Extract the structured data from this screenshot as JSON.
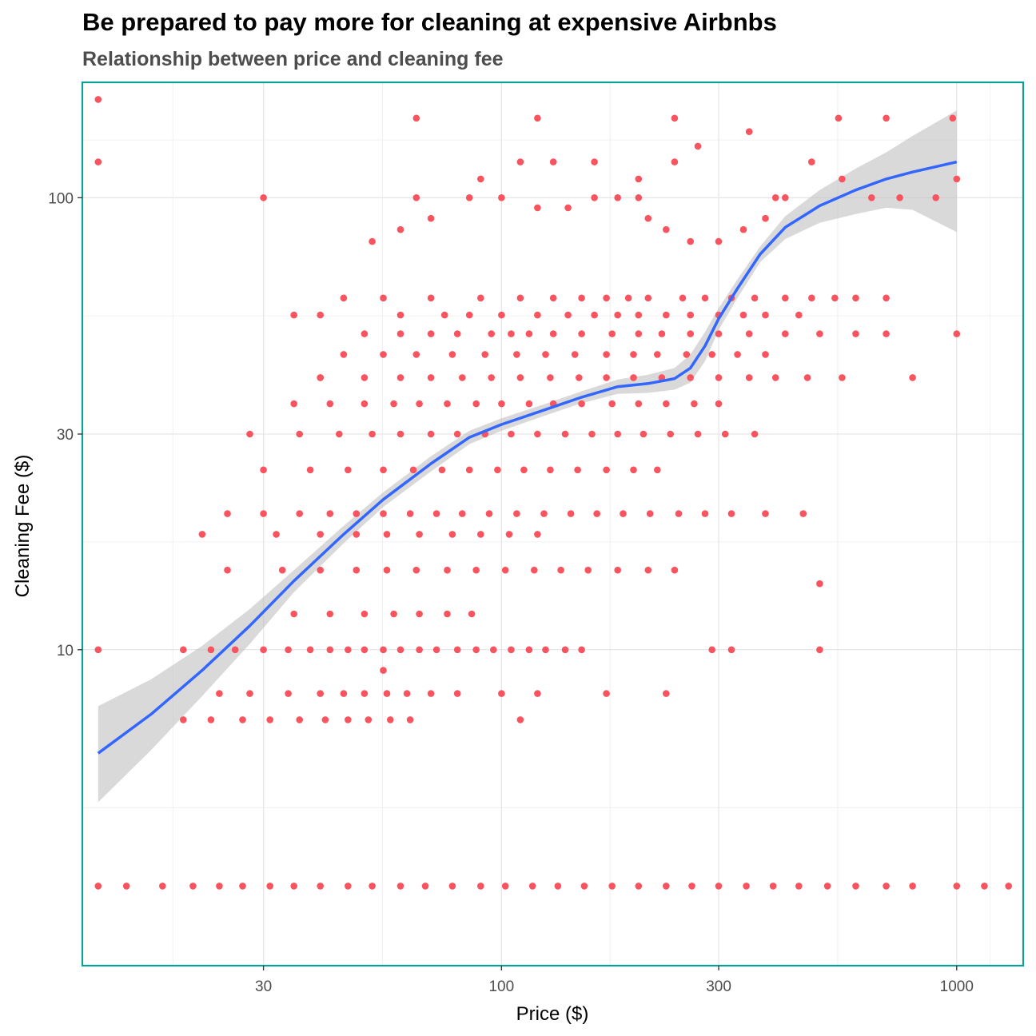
{
  "chart_data": {
    "type": "scatter",
    "title": "Be prepared to pay more for cleaning at expensive Airbnbs",
    "subtitle": "Relationship between price and cleaning fee",
    "xlabel": "Price ($)",
    "ylabel": "Cleaning Fee ($)",
    "x_scale": "log10",
    "y_scale": "log10",
    "xlim": [
      12,
      1400
    ],
    "ylim": [
      2,
      180
    ],
    "x_ticks": [
      30,
      100,
      300,
      1000
    ],
    "y_ticks": [
      10,
      30,
      100
    ],
    "grid": true,
    "panel_border_color": "#0e9f94",
    "point_color": "#f8545f",
    "smooth_color": "#3366ff",
    "ribbon_color": "#bfbfbf",
    "points": [
      [
        13,
        165
      ],
      [
        13,
        120
      ],
      [
        22,
        18
      ],
      [
        40,
        40
      ],
      [
        65,
        150
      ],
      [
        120,
        150
      ],
      [
        240,
        150
      ],
      [
        550,
        150
      ],
      [
        700,
        150
      ],
      [
        980,
        150
      ],
      [
        400,
        100
      ],
      [
        350,
        140
      ],
      [
        270,
        130
      ],
      [
        240,
        120
      ],
      [
        200,
        110
      ],
      [
        160,
        120
      ],
      [
        130,
        120
      ],
      [
        110,
        120
      ],
      [
        90,
        110
      ],
      [
        65,
        100
      ],
      [
        30,
        100
      ],
      [
        45,
        60
      ],
      [
        55,
        60
      ],
      [
        70,
        60
      ],
      [
        90,
        60
      ],
      [
        110,
        60
      ],
      [
        130,
        60
      ],
      [
        150,
        60
      ],
      [
        170,
        60
      ],
      [
        190,
        60
      ],
      [
        210,
        60
      ],
      [
        250,
        60
      ],
      [
        280,
        60
      ],
      [
        320,
        60
      ],
      [
        360,
        60
      ],
      [
        420,
        60
      ],
      [
        480,
        60
      ],
      [
        540,
        60
      ],
      [
        600,
        60
      ],
      [
        700,
        60
      ],
      [
        60,
        55
      ],
      [
        75,
        55
      ],
      [
        85,
        55
      ],
      [
        100,
        55
      ],
      [
        120,
        55
      ],
      [
        140,
        55
      ],
      [
        160,
        55
      ],
      [
        180,
        55
      ],
      [
        200,
        55
      ],
      [
        230,
        55
      ],
      [
        260,
        55
      ],
      [
        300,
        55
      ],
      [
        340,
        55
      ],
      [
        380,
        55
      ],
      [
        450,
        55
      ],
      [
        35,
        55
      ],
      [
        40,
        55
      ],
      [
        50,
        50
      ],
      [
        60,
        50
      ],
      [
        70,
        50
      ],
      [
        80,
        50
      ],
      [
        95,
        50
      ],
      [
        105,
        50
      ],
      [
        115,
        50
      ],
      [
        130,
        50
      ],
      [
        150,
        50
      ],
      [
        175,
        50
      ],
      [
        200,
        50
      ],
      [
        225,
        50
      ],
      [
        260,
        50
      ],
      [
        300,
        50
      ],
      [
        350,
        50
      ],
      [
        420,
        50
      ],
      [
        500,
        50
      ],
      [
        600,
        50
      ],
      [
        700,
        50
      ],
      [
        45,
        45
      ],
      [
        55,
        45
      ],
      [
        65,
        45
      ],
      [
        78,
        45
      ],
      [
        92,
        45
      ],
      [
        108,
        45
      ],
      [
        125,
        45
      ],
      [
        145,
        45
      ],
      [
        170,
        45
      ],
      [
        195,
        45
      ],
      [
        220,
        45
      ],
      [
        255,
        45
      ],
      [
        290,
        45
      ],
      [
        330,
        45
      ],
      [
        380,
        45
      ],
      [
        40,
        40
      ],
      [
        50,
        40
      ],
      [
        60,
        40
      ],
      [
        70,
        40
      ],
      [
        82,
        40
      ],
      [
        95,
        40
      ],
      [
        110,
        40
      ],
      [
        128,
        40
      ],
      [
        148,
        40
      ],
      [
        170,
        40
      ],
      [
        195,
        40
      ],
      [
        225,
        40
      ],
      [
        260,
        40
      ],
      [
        300,
        40
      ],
      [
        350,
        40
      ],
      [
        400,
        40
      ],
      [
        470,
        40
      ],
      [
        560,
        40
      ],
      [
        35,
        35
      ],
      [
        42,
        35
      ],
      [
        50,
        35
      ],
      [
        58,
        35
      ],
      [
        66,
        35
      ],
      [
        76,
        35
      ],
      [
        88,
        35
      ],
      [
        100,
        35
      ],
      [
        115,
        35
      ],
      [
        130,
        35
      ],
      [
        150,
        35
      ],
      [
        175,
        35
      ],
      [
        200,
        35
      ],
      [
        230,
        35
      ],
      [
        265,
        35
      ],
      [
        300,
        35
      ],
      [
        28,
        30
      ],
      [
        36,
        30
      ],
      [
        44,
        30
      ],
      [
        52,
        30
      ],
      [
        60,
        30
      ],
      [
        70,
        30
      ],
      [
        80,
        30
      ],
      [
        92,
        30
      ],
      [
        105,
        30
      ],
      [
        120,
        30
      ],
      [
        138,
        30
      ],
      [
        158,
        30
      ],
      [
        180,
        30
      ],
      [
        205,
        30
      ],
      [
        235,
        30
      ],
      [
        270,
        30
      ],
      [
        310,
        30
      ],
      [
        360,
        30
      ],
      [
        30,
        25
      ],
      [
        38,
        25
      ],
      [
        46,
        25
      ],
      [
        55,
        25
      ],
      [
        64,
        25
      ],
      [
        74,
        25
      ],
      [
        85,
        25
      ],
      [
        98,
        25
      ],
      [
        112,
        25
      ],
      [
        128,
        25
      ],
      [
        147,
        25
      ],
      [
        170,
        25
      ],
      [
        195,
        25
      ],
      [
        220,
        25
      ],
      [
        25,
        20
      ],
      [
        30,
        20
      ],
      [
        36,
        20
      ],
      [
        42,
        20
      ],
      [
        48,
        20
      ],
      [
        55,
        20
      ],
      [
        63,
        20
      ],
      [
        72,
        20
      ],
      [
        82,
        20
      ],
      [
        94,
        20
      ],
      [
        108,
        20
      ],
      [
        124,
        20
      ],
      [
        142,
        20
      ],
      [
        162,
        20
      ],
      [
        185,
        20
      ],
      [
        212,
        20
      ],
      [
        245,
        20
      ],
      [
        280,
        20
      ],
      [
        320,
        20
      ],
      [
        380,
        20
      ],
      [
        460,
        20
      ],
      [
        32,
        18
      ],
      [
        40,
        18
      ],
      [
        48,
        18
      ],
      [
        56,
        18
      ],
      [
        66,
        18
      ],
      [
        78,
        18
      ],
      [
        90,
        18
      ],
      [
        104,
        18
      ],
      [
        120,
        18
      ],
      [
        25,
        15
      ],
      [
        33,
        15
      ],
      [
        40,
        15
      ],
      [
        48,
        15
      ],
      [
        56,
        15
      ],
      [
        65,
        15
      ],
      [
        76,
        15
      ],
      [
        88,
        15
      ],
      [
        102,
        15
      ],
      [
        118,
        15
      ],
      [
        135,
        15
      ],
      [
        155,
        15
      ],
      [
        180,
        15
      ],
      [
        210,
        15
      ],
      [
        240,
        15
      ],
      [
        500,
        14
      ],
      [
        35,
        12
      ],
      [
        42,
        12
      ],
      [
        50,
        12
      ],
      [
        58,
        12
      ],
      [
        66,
        12
      ],
      [
        76,
        12
      ],
      [
        86,
        12
      ],
      [
        13,
        10
      ],
      [
        20,
        10
      ],
      [
        23,
        10
      ],
      [
        26,
        10
      ],
      [
        30,
        10
      ],
      [
        34,
        10
      ],
      [
        38,
        10
      ],
      [
        42,
        10
      ],
      [
        46,
        10
      ],
      [
        50,
        10
      ],
      [
        55,
        10
      ],
      [
        60,
        10
      ],
      [
        66,
        10
      ],
      [
        72,
        10
      ],
      [
        80,
        10
      ],
      [
        88,
        10
      ],
      [
        96,
        10
      ],
      [
        105,
        10
      ],
      [
        115,
        10
      ],
      [
        125,
        10
      ],
      [
        138,
        10
      ],
      [
        150,
        10
      ],
      [
        290,
        10
      ],
      [
        320,
        10
      ],
      [
        500,
        10
      ],
      [
        55,
        9
      ],
      [
        24,
        8
      ],
      [
        28,
        8
      ],
      [
        34,
        8
      ],
      [
        40,
        8
      ],
      [
        45,
        8
      ],
      [
        50,
        8
      ],
      [
        56,
        8
      ],
      [
        62,
        8
      ],
      [
        70,
        8
      ],
      [
        80,
        8
      ],
      [
        100,
        8
      ],
      [
        120,
        8
      ],
      [
        170,
        8
      ],
      [
        230,
        8
      ],
      [
        20,
        7
      ],
      [
        23,
        7
      ],
      [
        27,
        7
      ],
      [
        31,
        7
      ],
      [
        36,
        7
      ],
      [
        41,
        7
      ],
      [
        46,
        7
      ],
      [
        51,
        7
      ],
      [
        57,
        7
      ],
      [
        63,
        7
      ],
      [
        110,
        7
      ],
      [
        13,
        3
      ],
      [
        15,
        3
      ],
      [
        18,
        3
      ],
      [
        21,
        3
      ],
      [
        24,
        3
      ],
      [
        27,
        3
      ],
      [
        31,
        3
      ],
      [
        35,
        3
      ],
      [
        40,
        3
      ],
      [
        46,
        3
      ],
      [
        52,
        3
      ],
      [
        60,
        3
      ],
      [
        68,
        3
      ],
      [
        78,
        3
      ],
      [
        90,
        3
      ],
      [
        102,
        3
      ],
      [
        117,
        3
      ],
      [
        133,
        3
      ],
      [
        152,
        3
      ],
      [
        175,
        3
      ],
      [
        200,
        3
      ],
      [
        230,
        3
      ],
      [
        262,
        3
      ],
      [
        300,
        3
      ],
      [
        345,
        3
      ],
      [
        395,
        3
      ],
      [
        450,
        3
      ],
      [
        520,
        3
      ],
      [
        600,
        3
      ],
      [
        700,
        3
      ],
      [
        800,
        3
      ],
      [
        1000,
        3
      ],
      [
        1150,
        3
      ],
      [
        1300,
        3
      ],
      [
        1000,
        50
      ],
      [
        800,
        40
      ],
      [
        1000,
        110
      ],
      [
        900,
        100
      ],
      [
        750,
        100
      ],
      [
        650,
        100
      ],
      [
        560,
        110
      ],
      [
        480,
        120
      ],
      [
        420,
        100
      ],
      [
        380,
        90
      ],
      [
        340,
        85
      ],
      [
        300,
        80
      ],
      [
        260,
        80
      ],
      [
        230,
        85
      ],
      [
        210,
        90
      ],
      [
        200,
        100
      ],
      [
        180,
        100
      ],
      [
        160,
        100
      ],
      [
        140,
        95
      ],
      [
        120,
        95
      ],
      [
        100,
        100
      ],
      [
        85,
        100
      ],
      [
        70,
        90
      ],
      [
        60,
        85
      ],
      [
        52,
        80
      ]
    ],
    "smooth_line": [
      [
        13,
        5.9
      ],
      [
        17,
        7.2
      ],
      [
        22,
        9.0
      ],
      [
        28,
        11.3
      ],
      [
        35,
        14.2
      ],
      [
        45,
        18.0
      ],
      [
        55,
        21.5
      ],
      [
        70,
        25.8
      ],
      [
        85,
        29.5
      ],
      [
        100,
        31.5
      ],
      [
        125,
        34.0
      ],
      [
        150,
        36.2
      ],
      [
        180,
        38.2
      ],
      [
        210,
        38.8
      ],
      [
        240,
        39.8
      ],
      [
        260,
        42.0
      ],
      [
        280,
        47.0
      ],
      [
        300,
        54.0
      ],
      [
        330,
        63.0
      ],
      [
        370,
        75.0
      ],
      [
        420,
        86.0
      ],
      [
        500,
        96.0
      ],
      [
        600,
        104.0
      ],
      [
        700,
        110.0
      ],
      [
        800,
        114.0
      ],
      [
        1000,
        120.0
      ]
    ],
    "ribbon_upper": [
      [
        13,
        7.5
      ],
      [
        17,
        8.6
      ],
      [
        22,
        10.2
      ],
      [
        28,
        12.3
      ],
      [
        35,
        15.0
      ],
      [
        45,
        18.8
      ],
      [
        55,
        22.3
      ],
      [
        70,
        26.8
      ],
      [
        85,
        30.5
      ],
      [
        100,
        32.5
      ],
      [
        125,
        35.0
      ],
      [
        150,
        37.3
      ],
      [
        180,
        39.6
      ],
      [
        210,
        40.6
      ],
      [
        240,
        42.0
      ],
      [
        260,
        45.0
      ],
      [
        280,
        50.5
      ],
      [
        300,
        57.0
      ],
      [
        330,
        66.0
      ],
      [
        370,
        78.0
      ],
      [
        420,
        91.0
      ],
      [
        500,
        104.0
      ],
      [
        600,
        116.0
      ],
      [
        700,
        126.0
      ],
      [
        800,
        137.0
      ],
      [
        1000,
        156.0
      ]
    ],
    "ribbon_lower": [
      [
        13,
        4.6
      ],
      [
        17,
        6.0
      ],
      [
        22,
        7.9
      ],
      [
        28,
        10.3
      ],
      [
        35,
        13.4
      ],
      [
        45,
        17.2
      ],
      [
        55,
        20.7
      ],
      [
        70,
        24.8
      ],
      [
        85,
        28.5
      ],
      [
        100,
        30.5
      ],
      [
        125,
        33.0
      ],
      [
        150,
        35.1
      ],
      [
        180,
        36.8
      ],
      [
        210,
        37.0
      ],
      [
        240,
        37.6
      ],
      [
        260,
        39.0
      ],
      [
        280,
        43.5
      ],
      [
        300,
        51.0
      ],
      [
        330,
        60.0
      ],
      [
        370,
        72.0
      ],
      [
        420,
        81.0
      ],
      [
        500,
        88.0
      ],
      [
        600,
        92.0
      ],
      [
        700,
        95.0
      ],
      [
        800,
        94.0
      ],
      [
        1000,
        84.0
      ]
    ]
  }
}
